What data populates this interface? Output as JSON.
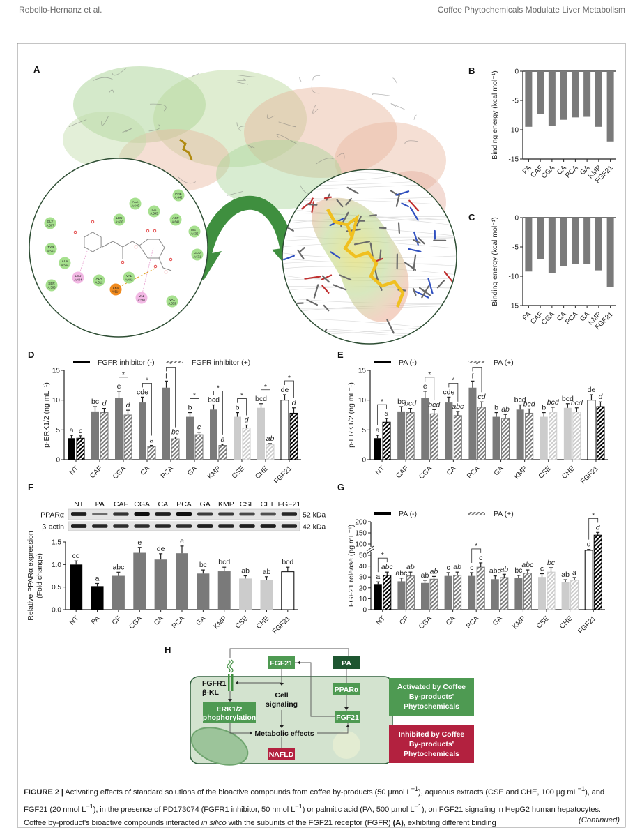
{
  "header": {
    "authors": "Rebollo-Hernanz et al.",
    "running_title": "Coffee Phytochemicals Modulate Liver Metabolism"
  },
  "panel_labels": [
    "A",
    "B",
    "C",
    "D",
    "E",
    "F",
    "G",
    "H"
  ],
  "panel_a": {
    "residues": [
      {
        "name": "GLY",
        "id": "A:567",
        "color": "#a6e08e"
      },
      {
        "name": "TYR",
        "id": "A:563",
        "color": "#a6e08e"
      },
      {
        "name": "ALA",
        "id": "A:564",
        "color": "#a6e08e"
      },
      {
        "name": "SER",
        "id": "A:565",
        "color": "#a6e08e"
      },
      {
        "name": "LEU",
        "id": "A:484",
        "color": "#f2b8e4"
      },
      {
        "name": "ALA",
        "id": "A:512",
        "color": "#a6e08e"
      },
      {
        "name": "VAL",
        "id": "A:492",
        "color": "#a6e08e"
      },
      {
        "name": "LYS",
        "id": "A:514",
        "color": "#f08a1e"
      },
      {
        "name": "VAL",
        "id": "A:561",
        "color": "#f2b8e4"
      },
      {
        "name": "VAL",
        "id": "A:559",
        "color": "#a6e08e"
      },
      {
        "name": "LEU",
        "id": "A:630",
        "color": "#a6e08e"
      },
      {
        "name": "ALA",
        "id": "A:640",
        "color": "#a6e08e"
      },
      {
        "name": "ILE",
        "id": "A:545",
        "color": "#a6e08e"
      },
      {
        "name": "PHE",
        "id": "A:642",
        "color": "#a6e08e"
      },
      {
        "name": "ASP",
        "id": "A:641",
        "color": "#a6e08e"
      },
      {
        "name": "MET",
        "id": "A:535",
        "color": "#a6e08e"
      },
      {
        "name": "GLU",
        "id": "A:531",
        "color": "#a6e08e"
      }
    ],
    "arrow_color": "#3f8f3f",
    "ligand_color": "#f0c020"
  },
  "panel_f_blot": {
    "lanes": [
      "NT",
      "PA",
      "CAF",
      "CGA",
      "CA",
      "PCA",
      "GA",
      "KMP",
      "CSE",
      "CHE",
      "FGF21"
    ],
    "rows": [
      {
        "name": "PPARα",
        "size": "52 kDa",
        "intensity": [
          0.9,
          0.35,
          0.75,
          1.0,
          0.9,
          1.0,
          0.7,
          0.7,
          0.6,
          0.55,
          0.85
        ]
      },
      {
        "name": "β-actin",
        "size": "42 kDa",
        "intensity": [
          0.9,
          0.85,
          0.8,
          0.8,
          0.85,
          0.8,
          0.9,
          0.85,
          0.9,
          0.9,
          0.85
        ]
      }
    ]
  },
  "chart_data": [
    {
      "type": "bar",
      "panel": "B",
      "ylabel": "Binding energy (kcal mol⁻¹)",
      "ylim": [
        -15,
        0
      ],
      "yticks": [
        "0",
        "-5",
        "-10",
        "-15"
      ],
      "categories": [
        "PA",
        "CAF",
        "CGA",
        "CA",
        "PCA",
        "GA",
        "KMP",
        "FGF21"
      ],
      "colors": [
        "#7a7a7a",
        "#7a7a7a",
        "#7a7a7a",
        "#7a7a7a",
        "#7a7a7a",
        "#7a7a7a",
        "#7a7a7a",
        "#7a7a7a"
      ],
      "series": [
        {
          "values": [
            -9.5,
            -7.3,
            -9.4,
            -8.3,
            -7.9,
            -7.8,
            -9.5,
            -12.0
          ]
        }
      ]
    },
    {
      "type": "bar",
      "panel": "C",
      "ylabel": "Binding energy (kcal mol⁻¹)",
      "ylim": [
        -15,
        0
      ],
      "yticks": [
        "0",
        "-5",
        "-10",
        "-15"
      ],
      "categories": [
        "PA",
        "CAF",
        "CGA",
        "CA",
        "PCA",
        "GA",
        "KMP",
        "FGF21"
      ],
      "colors": [
        "#7a7a7a",
        "#7a7a7a",
        "#7a7a7a",
        "#7a7a7a",
        "#7a7a7a",
        "#7a7a7a",
        "#7a7a7a",
        "#7a7a7a"
      ],
      "series": [
        {
          "values": [
            -9.2,
            -7.1,
            -9.5,
            -8.3,
            -7.9,
            -7.9,
            -9.0,
            -11.8
          ]
        }
      ]
    },
    {
      "type": "bar",
      "panel": "D",
      "ylabel": "p-ERK1/2 (ng mL⁻¹)",
      "ylim": [
        0,
        15
      ],
      "yticks": [
        "0",
        "5",
        "10",
        "15"
      ],
      "categories": [
        "NT",
        "CAF",
        "CGA",
        "CA",
        "PCA",
        "GA",
        "KMP",
        "CSE",
        "CHE",
        "FGF21"
      ],
      "colors": [
        "#000000",
        "#7a7a7a",
        "#7a7a7a",
        "#7a7a7a",
        "#7a7a7a",
        "#7a7a7a",
        "#7a7a7a",
        "#cccccc",
        "#cccccc",
        "#ffffff"
      ],
      "sig_symbol": "*",
      "significant": [
        false,
        false,
        true,
        true,
        true,
        true,
        true,
        true,
        true,
        true
      ],
      "series": [
        {
          "name": "FGFR inhibitor (-)",
          "values": [
            3.6,
            8.1,
            10.4,
            9.6,
            12.1,
            7.2,
            8.4,
            7.2,
            8.7,
            10.0
          ],
          "errors": [
            0.5,
            0.8,
            1.1,
            0.9,
            1.1,
            0.7,
            0.8,
            0.7,
            0.7,
            0.9
          ],
          "letters": [
            "a",
            "bc",
            "e",
            "cde",
            "f",
            "b",
            "bcd",
            "b",
            "bcd",
            "de"
          ]
        },
        {
          "name": "FGFR inhibitor (+)",
          "values": [
            3.6,
            7.9,
            7.5,
            2.2,
            3.5,
            4.2,
            2.4,
            5.3,
            2.5,
            7.8
          ],
          "errors": [
            0.4,
            0.7,
            0.8,
            0.2,
            0.3,
            0.4,
            0.2,
            0.5,
            0.2,
            0.9
          ],
          "letters": [
            "c",
            "d",
            "d",
            "a",
            "bc",
            "c",
            "a",
            "d",
            "ab",
            "d"
          ]
        }
      ]
    },
    {
      "type": "bar",
      "panel": "E",
      "ylabel": "p-ERK1/2 (ng mL⁻¹)",
      "ylim": [
        0,
        15
      ],
      "yticks": [
        "0",
        "5",
        "10",
        "15"
      ],
      "categories": [
        "NT",
        "CAF",
        "CGA",
        "CA",
        "PCA",
        "GA",
        "KMP",
        "CSE",
        "CHE",
        "FGF21"
      ],
      "colors": [
        "#000000",
        "#7a7a7a",
        "#7a7a7a",
        "#7a7a7a",
        "#7a7a7a",
        "#7a7a7a",
        "#7a7a7a",
        "#cccccc",
        "#cccccc",
        "#ffffff"
      ],
      "sig_symbol": "*",
      "significant": [
        true,
        false,
        true,
        true,
        true,
        false,
        false,
        false,
        false,
        false
      ],
      "series": [
        {
          "name": "PA (-)",
          "values": [
            3.6,
            8.1,
            10.4,
            9.6,
            12.1,
            7.2,
            8.4,
            7.2,
            8.7,
            10.0
          ],
          "errors": [
            0.5,
            0.8,
            1.1,
            0.9,
            1.1,
            0.7,
            0.8,
            0.7,
            0.7,
            0.9
          ],
          "letters": [
            "a",
            "bc",
            "e",
            "cde",
            "f",
            "b",
            "bcd",
            "b",
            "bcd",
            "de"
          ]
        },
        {
          "name": "PA (+)",
          "values": [
            6.3,
            7.9,
            7.7,
            7.4,
            8.8,
            6.9,
            7.8,
            8.0,
            8.0,
            8.9
          ],
          "errors": [
            0.6,
            0.7,
            0.7,
            0.7,
            0.9,
            0.7,
            0.7,
            0.8,
            0.7,
            0.8
          ],
          "letters": [
            "a",
            "bcd",
            "bcd",
            "abc",
            "cd",
            "ab",
            "bcd",
            "bcd",
            "bcd",
            "d"
          ]
        }
      ]
    },
    {
      "type": "bar",
      "panel": "F",
      "ylabel": [
        "Relative PPARα expression",
        "(Fold change)"
      ],
      "ylim": [
        0,
        1.5
      ],
      "yticks": [
        "0.0",
        "0.5",
        "1.0",
        "1.5"
      ],
      "categories": [
        "NT",
        "PA",
        "CF",
        "CGA",
        "CA",
        "PCA",
        "GA",
        "KMP",
        "CSE",
        "CHE",
        "FGF21"
      ],
      "colors": [
        "#000000",
        "#000000",
        "#7a7a7a",
        "#7a7a7a",
        "#7a7a7a",
        "#7a7a7a",
        "#7a7a7a",
        "#7a7a7a",
        "#cccccc",
        "#cccccc",
        "#ffffff"
      ],
      "series": [
        {
          "values": [
            1.0,
            0.52,
            0.75,
            1.26,
            1.11,
            1.25,
            0.8,
            0.85,
            0.69,
            0.66,
            0.84
          ],
          "errors": [
            0.08,
            0.06,
            0.08,
            0.12,
            0.13,
            0.16,
            0.08,
            0.09,
            0.06,
            0.07,
            0.1
          ],
          "letters": [
            "cd",
            "a",
            "abc",
            "e",
            "de",
            "e",
            "bc",
            "bcd",
            "ab",
            "ab",
            "bcd"
          ]
        }
      ]
    },
    {
      "type": "bar",
      "panel": "G",
      "ylabel": "FGF21 release (pg mL⁻¹)",
      "ylim": [
        0,
        200
      ],
      "axis_break": [
        50,
        100
      ],
      "yticks": [
        "0",
        "10",
        "20",
        "30",
        "40",
        "50",
        "100",
        "150",
        "200"
      ],
      "categories": [
        "NT",
        "CF",
        "CGA",
        "CA",
        "PCA",
        "GA",
        "KMP",
        "CSE",
        "CHE",
        "FGF21"
      ],
      "colors": [
        "#000000",
        "#7a7a7a",
        "#7a7a7a",
        "#7a7a7a",
        "#7a7a7a",
        "#7a7a7a",
        "#7a7a7a",
        "#cccccc",
        "#cccccc",
        "#ffffff"
      ],
      "sig_symbol": "*",
      "significant": [
        true,
        false,
        false,
        false,
        true,
        false,
        false,
        false,
        false,
        true
      ],
      "series": [
        {
          "name": "PA (-)",
          "values": [
            23.5,
            26,
            24.5,
            31,
            31,
            28,
            29,
            30,
            25,
            72
          ],
          "errors": [
            2,
            3,
            2.5,
            3,
            3,
            3,
            2.5,
            3,
            2.5,
            4
          ],
          "letters": [
            "a",
            "abc",
            "ab",
            "c",
            "c",
            "abc",
            "bc",
            "c",
            "ab",
            "d"
          ]
        },
        {
          "name": "PA (+)",
          "values": [
            31.5,
            31,
            28,
            31.5,
            39,
            29.5,
            33.5,
            34.5,
            27,
            140
          ],
          "errors": [
            3,
            3.5,
            2.5,
            3,
            4,
            3,
            3,
            4,
            2.5,
            12
          ],
          "letters": [
            "abc",
            "ab",
            "ab",
            "ab",
            "c",
            "ab",
            "abc",
            "bc",
            "a",
            "d"
          ]
        }
      ]
    }
  ],
  "panel_h": {
    "fgf21_top": "FGF21",
    "pa": "PA",
    "receptor": [
      "FGFR1",
      "β-KL"
    ],
    "erk": [
      "ERK1/2",
      "phophorylation"
    ],
    "cell_signaling": [
      "Cell",
      "signaling"
    ],
    "metabolic": "Metabolic effects",
    "ppara": "PPARα",
    "fgf21_cell": "FGF21",
    "nafld": "NAFLD",
    "legend_activated": [
      "Activated by Coffee",
      "By-products'",
      "Phytochemicals"
    ],
    "legend_inhibited": [
      "Inhibited by Coffee",
      "By-products'",
      "Phytochemicals"
    ],
    "colors": {
      "activated": "#4e9a52",
      "pa": "#1e5631",
      "inhibited": "#b3213f",
      "cell": "#d3e3cf"
    }
  },
  "caption": {
    "label": "FIGURE 2 |",
    "parts": [
      "Activating effects of standard solutions of the bioactive compounds from coffee by-products (50 µmol L",
      "−1",
      "), aqueous extracts (CSE and CHE, 100 µg mL",
      "−1",
      "), and FGF21 (20 nmol L",
      "−1",
      "), in the presence of PD173074 (FGFR1 inhibitor, 50 nmol L",
      "−1",
      ") or palmitic acid (PA, 500 µmol L",
      "−1",
      "), on FGF21 signaling in HepG2 human hepatocytes. Coffee by-product's bioactive compounds interacted ",
      "in silico",
      " with the subunits of the FGF21 receptor (FGFR) ",
      "(A)",
      ", exhibiting different binding"
    ],
    "continued": "(Continued)"
  }
}
